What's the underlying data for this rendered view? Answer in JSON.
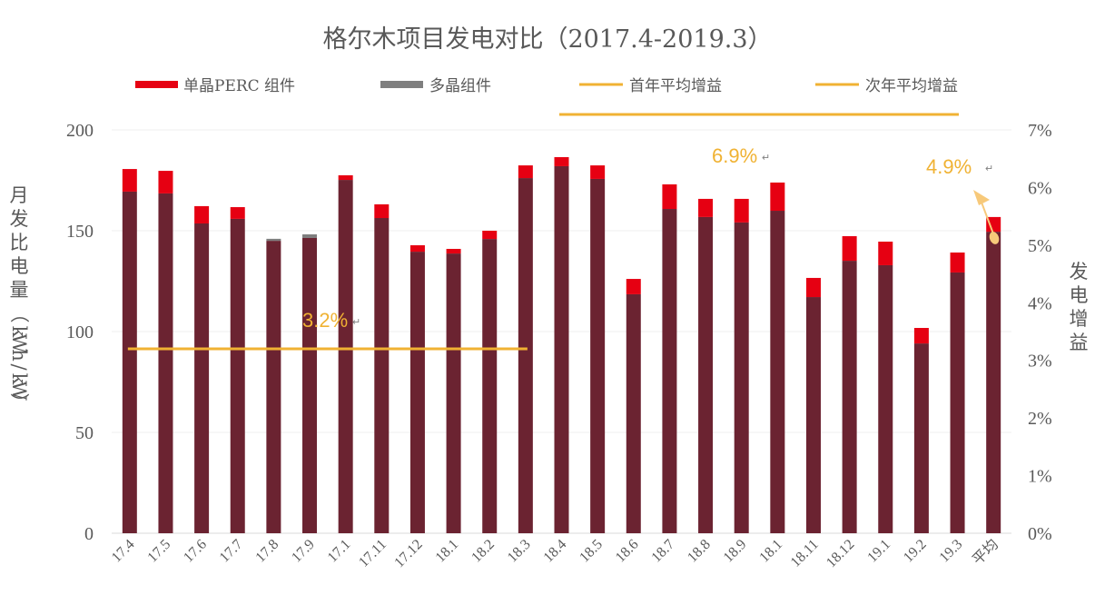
{
  "chart_data": {
    "type": "bar",
    "stacked": true,
    "title": "格尔木项目发电对比（2017.4-2019.3）",
    "ylabel": "月发比电量（kWh/kW）",
    "y2label": "发电增益",
    "ylim": [
      0,
      200
    ],
    "y2lim": [
      0,
      0.07
    ],
    "yticks": [
      "0",
      "50",
      "100",
      "150",
      "200"
    ],
    "y2ticks": [
      "0%",
      "1%",
      "2%",
      "3%",
      "4%",
      "5%",
      "6%",
      "7%"
    ],
    "grid": true,
    "legend_position": "top",
    "categories": [
      "17.4",
      "17.5",
      "17.6",
      "17.7",
      "17.8",
      "17.9",
      "17.1",
      "17.11",
      "17.12",
      "18.1",
      "18.2",
      "18.3",
      "18.4",
      "18.5",
      "18.6",
      "18.7",
      "18.8",
      "18.9",
      "18.1",
      "18.11",
      "18.12",
      "19.1",
      "19.2",
      "19.3",
      "平均"
    ],
    "series": [
      {
        "name": "多晶组件",
        "color": "#6B2331",
        "values": [
          169.4,
          168.5,
          153.6,
          155.9,
          146.0,
          148.2,
          175.2,
          156.3,
          139.6,
          138.7,
          145.9,
          176.1,
          182.0,
          175.7,
          118.5,
          160.8,
          156.8,
          154.1,
          159.9,
          117.1,
          135.1,
          132.9,
          94.1,
          129.3,
          149.5
        ]
      },
      {
        "name": "单晶PERC 组件",
        "color": "#E60012",
        "values": [
          180.6,
          179.7,
          162.2,
          161.7,
          145.0,
          146.4,
          177.5,
          163.1,
          142.8,
          141.0,
          150.0,
          182.4,
          186.5,
          182.4,
          126.1,
          173.0,
          165.8,
          165.8,
          173.9,
          126.6,
          147.3,
          144.6,
          101.8,
          139.2,
          156.8
        ]
      }
    ],
    "poly_color_when_higher": "#7F7F7F",
    "gain_lines": [
      {
        "name": "首年平均增益",
        "value": 0.032,
        "label": "3.2%",
        "from": "17.4",
        "to": "18.3",
        "color": "#F0B233"
      },
      {
        "name": "次年平均增益",
        "value": 0.069,
        "label": "6.9%",
        "from": "18.4",
        "to": "平均",
        "color": "#F0B233"
      }
    ],
    "annotations": [
      {
        "text": "3.2%",
        "target": "first-year-gain"
      },
      {
        "text": "6.9%",
        "target": "second-year-gain"
      },
      {
        "text": "4.9%",
        "target": "平均",
        "arrow": true
      }
    ],
    "legend": [
      {
        "label": "单晶PERC 组件",
        "kind": "bar",
        "color": "#E60012"
      },
      {
        "label": "多晶组件",
        "kind": "bar",
        "color": "#7F7F7F"
      },
      {
        "label": "首年平均增益",
        "kind": "line",
        "color": "#F0B233"
      },
      {
        "label": "次年平均增益",
        "kind": "line",
        "color": "#F0B233"
      }
    ],
    "return_mark": "↵"
  }
}
